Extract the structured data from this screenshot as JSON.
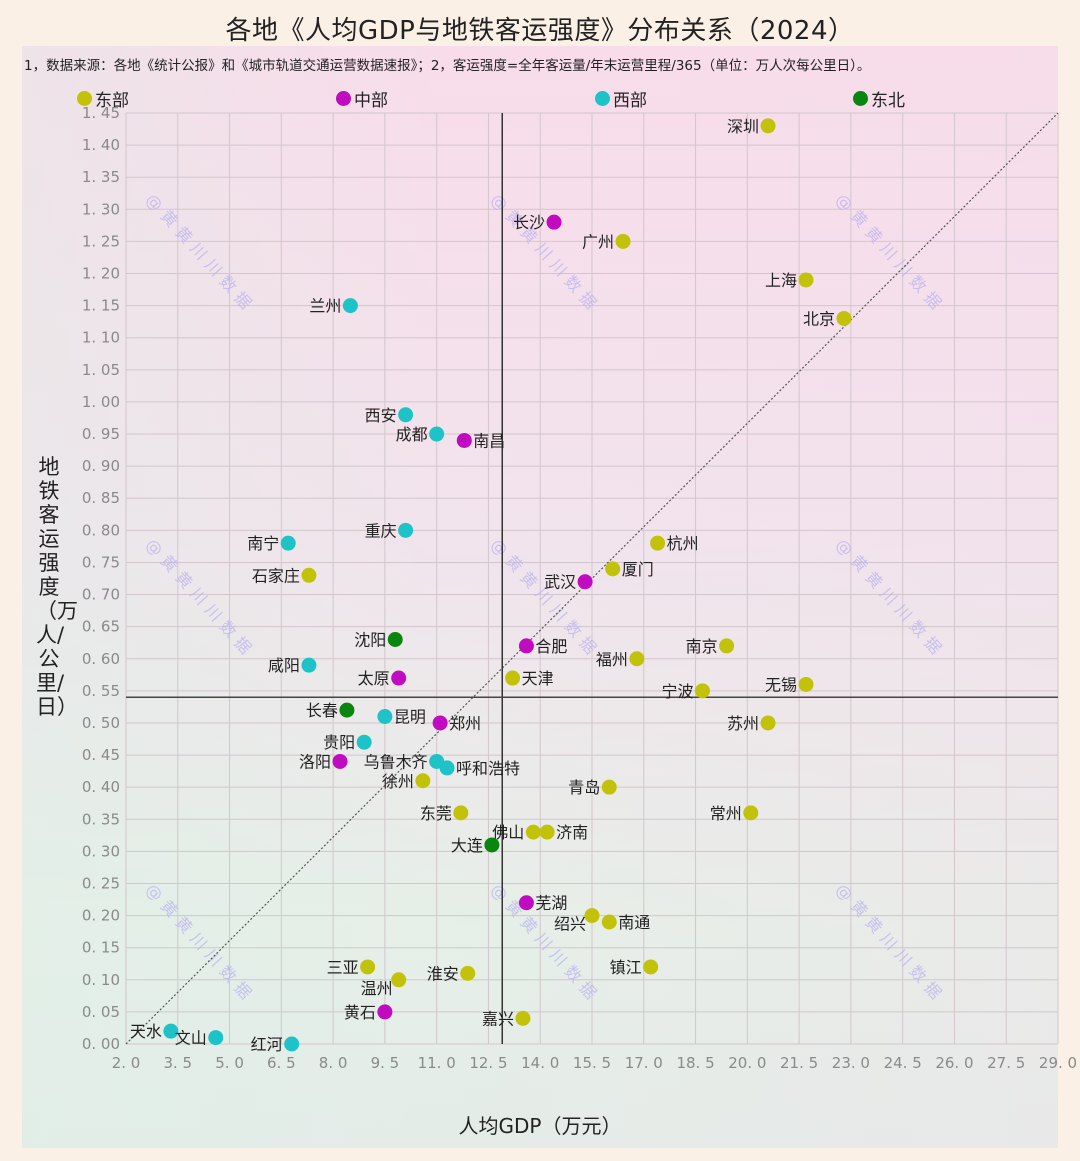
{
  "title": "各地《人均GDP与地铁客运强度》分布关系（2024）",
  "note": "1，数据来源：各地《统计公报》和《城市轨道交通运营数据速报》；2，客运强度=全年客运量/年末运营里程/365（单位：万人次每公里日）。",
  "watermark": "@黄黄川川数据",
  "legend": [
    {
      "name": "东部",
      "color": "#c3c20a"
    },
    {
      "name": "中部",
      "color": "#c00bc0"
    },
    {
      "name": "西部",
      "color": "#1ec3c8"
    },
    {
      "name": "东北",
      "color": "#0a850f"
    }
  ],
  "chart_data": {
    "type": "scatter",
    "title": "各地《人均GDP与地铁客运强度》分布关系（2024）",
    "xlabel": "人均GDP（万元）",
    "ylabel": "地铁客运强度（万人/公里/日）",
    "xlim": [
      2.0,
      29.0
    ],
    "ylim": [
      0.0,
      1.45
    ],
    "xticks": [
      "2.0",
      "3.5",
      "5.0",
      "6.5",
      "8.0",
      "9.5",
      "11.0",
      "12.5",
      "14.0",
      "15.5",
      "17.0",
      "18.5",
      "20.0",
      "21.5",
      "23.0",
      "24.5",
      "26.0",
      "27.5",
      "29.0"
    ],
    "yticks": [
      "0.00",
      "0.05",
      "0.10",
      "0.15",
      "0.20",
      "0.25",
      "0.30",
      "0.35",
      "0.40",
      "0.45",
      "0.50",
      "0.55",
      "0.60",
      "0.65",
      "0.70",
      "0.75",
      "0.80",
      "0.85",
      "0.90",
      "0.95",
      "1.00",
      "1.05",
      "1.10",
      "1.15",
      "1.20",
      "1.25",
      "1.30",
      "1.35",
      "1.40",
      "1.45"
    ],
    "grid": true,
    "legend_position": "top",
    "reference_lines": {
      "mean_x": 12.9,
      "mean_y": 0.54,
      "diagonal": "dotted line from (2.0, 0.00) to (29.0, 1.45)"
    },
    "points": [
      {
        "city": "深圳",
        "region": "东部",
        "x": 20.6,
        "y": 1.43,
        "label_side": "left"
      },
      {
        "city": "长沙",
        "region": "中部",
        "x": 14.4,
        "y": 1.28,
        "label_side": "left"
      },
      {
        "city": "广州",
        "region": "东部",
        "x": 16.4,
        "y": 1.25,
        "label_side": "left"
      },
      {
        "city": "上海",
        "region": "东部",
        "x": 21.7,
        "y": 1.19,
        "label_side": "left"
      },
      {
        "city": "北京",
        "region": "东部",
        "x": 22.8,
        "y": 1.13,
        "label_side": "left"
      },
      {
        "city": "兰州",
        "region": "西部",
        "x": 8.5,
        "y": 1.15,
        "label_side": "left"
      },
      {
        "city": "西安",
        "region": "西部",
        "x": 10.1,
        "y": 0.98,
        "label_side": "left"
      },
      {
        "city": "成都",
        "region": "西部",
        "x": 11.0,
        "y": 0.95,
        "label_side": "left"
      },
      {
        "city": "南昌",
        "region": "中部",
        "x": 11.8,
        "y": 0.94,
        "label_side": "right"
      },
      {
        "city": "重庆",
        "region": "西部",
        "x": 10.1,
        "y": 0.8,
        "label_side": "left"
      },
      {
        "city": "南宁",
        "region": "西部",
        "x": 6.7,
        "y": 0.78,
        "label_side": "left"
      },
      {
        "city": "石家庄",
        "region": "东部",
        "x": 7.3,
        "y": 0.73,
        "label_side": "left"
      },
      {
        "city": "杭州",
        "region": "东部",
        "x": 17.4,
        "y": 0.78,
        "label_side": "right"
      },
      {
        "city": "厦门",
        "region": "东部",
        "x": 16.1,
        "y": 0.74,
        "label_side": "right"
      },
      {
        "city": "武汉",
        "region": "中部",
        "x": 15.3,
        "y": 0.72,
        "label_side": "left"
      },
      {
        "city": "沈阳",
        "region": "东北",
        "x": 9.8,
        "y": 0.63,
        "label_side": "left"
      },
      {
        "city": "合肥",
        "region": "中部",
        "x": 13.6,
        "y": 0.62,
        "label_side": "right"
      },
      {
        "city": "福州",
        "region": "东部",
        "x": 16.8,
        "y": 0.6,
        "label_side": "left"
      },
      {
        "city": "南京",
        "region": "东部",
        "x": 19.4,
        "y": 0.62,
        "label_side": "left"
      },
      {
        "city": "咸阳",
        "region": "西部",
        "x": 7.3,
        "y": 0.59,
        "label_side": "left"
      },
      {
        "city": "太原",
        "region": "中部",
        "x": 9.9,
        "y": 0.57,
        "label_side": "left"
      },
      {
        "city": "天津",
        "region": "东部",
        "x": 13.2,
        "y": 0.57,
        "label_side": "right"
      },
      {
        "city": "无锡",
        "region": "东部",
        "x": 21.7,
        "y": 0.56,
        "label_side": "left"
      },
      {
        "city": "宁波",
        "region": "东部",
        "x": 18.7,
        "y": 0.55,
        "label_side": "left"
      },
      {
        "city": "长春",
        "region": "东北",
        "x": 8.4,
        "y": 0.52,
        "label_side": "left"
      },
      {
        "city": "昆明",
        "region": "西部",
        "x": 9.5,
        "y": 0.51,
        "label_side": "right"
      },
      {
        "city": "苏州",
        "region": "东部",
        "x": 20.6,
        "y": 0.5,
        "label_side": "left"
      },
      {
        "city": "郑州",
        "region": "中部",
        "x": 11.1,
        "y": 0.5,
        "label_side": "right"
      },
      {
        "city": "贵阳",
        "region": "西部",
        "x": 8.9,
        "y": 0.47,
        "label_side": "left"
      },
      {
        "city": "洛阳",
        "region": "中部",
        "x": 8.2,
        "y": 0.44,
        "label_side": "left"
      },
      {
        "city": "乌鲁木齐",
        "region": "西部",
        "x": 11.0,
        "y": 0.44,
        "label_side": "left"
      },
      {
        "city": "呼和浩特",
        "region": "西部",
        "x": 11.3,
        "y": 0.43,
        "label_side": "right"
      },
      {
        "city": "徐州",
        "region": "东部",
        "x": 10.6,
        "y": 0.41,
        "label_side": "left"
      },
      {
        "city": "青岛",
        "region": "东部",
        "x": 16.0,
        "y": 0.4,
        "label_side": "left"
      },
      {
        "city": "常州",
        "region": "东部",
        "x": 20.1,
        "y": 0.36,
        "label_side": "left"
      },
      {
        "city": "东莞",
        "region": "东部",
        "x": 11.7,
        "y": 0.36,
        "label_side": "left"
      },
      {
        "city": "佛山",
        "region": "东部",
        "x": 13.8,
        "y": 0.33,
        "label_side": "left"
      },
      {
        "city": "济南",
        "region": "东部",
        "x": 14.2,
        "y": 0.33,
        "label_side": "right"
      },
      {
        "city": "大连",
        "region": "东北",
        "x": 12.6,
        "y": 0.31,
        "label_side": "left"
      },
      {
        "city": "芜湖",
        "region": "中部",
        "x": 13.6,
        "y": 0.22,
        "label_side": "right"
      },
      {
        "city": "绍兴",
        "region": "东部",
        "x": 15.5,
        "y": 0.2,
        "label_side": "below-left"
      },
      {
        "city": "南通",
        "region": "东部",
        "x": 16.0,
        "y": 0.19,
        "label_side": "right"
      },
      {
        "city": "镇江",
        "region": "东部",
        "x": 17.2,
        "y": 0.12,
        "label_side": "left"
      },
      {
        "city": "三亚",
        "region": "东部",
        "x": 9.0,
        "y": 0.12,
        "label_side": "left"
      },
      {
        "city": "温州",
        "region": "东部",
        "x": 9.9,
        "y": 0.1,
        "label_side": "below-left"
      },
      {
        "city": "淮安",
        "region": "东部",
        "x": 11.9,
        "y": 0.11,
        "label_side": "left"
      },
      {
        "city": "黄石",
        "region": "中部",
        "x": 9.5,
        "y": 0.05,
        "label_side": "left"
      },
      {
        "city": "嘉兴",
        "region": "东部",
        "x": 13.5,
        "y": 0.04,
        "label_side": "left"
      },
      {
        "city": "天水",
        "region": "西部",
        "x": 3.3,
        "y": 0.02,
        "label_side": "left"
      },
      {
        "city": "文山",
        "region": "西部",
        "x": 4.6,
        "y": 0.01,
        "label_side": "left"
      },
      {
        "city": "红河",
        "region": "西部",
        "x": 6.8,
        "y": 0.0,
        "label_side": "left"
      }
    ]
  }
}
